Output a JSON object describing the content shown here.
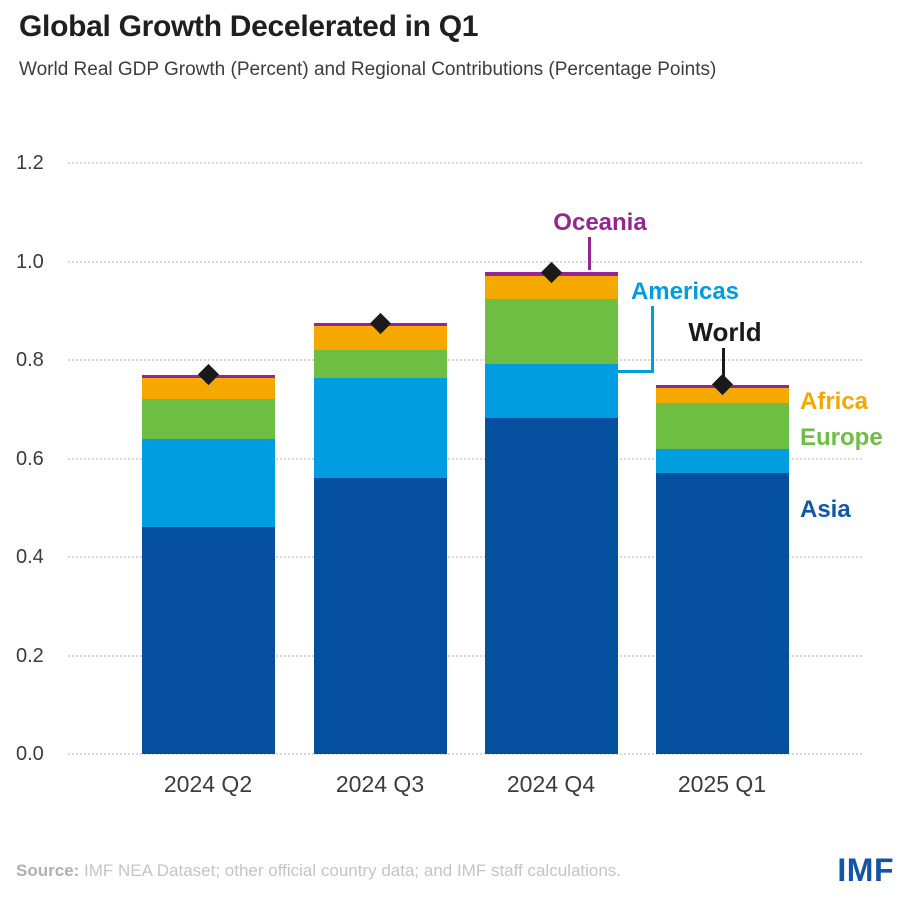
{
  "chart_data": {
    "type": "bar",
    "stacked": true,
    "title": "Global Growth Decelerated in Q1",
    "subtitle": "World Real GDP Growth (Percent) and Regional Contributions (Percentage Points)",
    "xlabel": "",
    "ylabel": "",
    "ylim": [
      0,
      1.2
    ],
    "grid": "horizontal dotted",
    "legend_position": "inline annotations on chart",
    "y_ticks": [
      "1.2",
      "1.0",
      "0.8",
      "0.6",
      "0.4",
      "0.2",
      "0.0"
    ],
    "categories": [
      "2024 Q2",
      "2024 Q3",
      "2024 Q4",
      "2025 Q1"
    ],
    "series": [
      {
        "name": "Asia",
        "color": "#05509e",
        "values": [
          0.46,
          0.56,
          0.682,
          0.57
        ]
      },
      {
        "name": "Americas",
        "color": "#009de0",
        "values": [
          0.18,
          0.203,
          0.109,
          0.049
        ]
      },
      {
        "name": "Europe",
        "color": "#6fbe44",
        "values": [
          0.08,
          0.057,
          0.133,
          0.093
        ]
      },
      {
        "name": "Africa",
        "color": "#f5a800",
        "values": [
          0.043,
          0.05,
          0.047,
          0.032
        ]
      },
      {
        "name": "Oceania",
        "color": "#93278f",
        "values": [
          0.007,
          0.005,
          0.007,
          0.006
        ]
      }
    ],
    "world": {
      "name": "World",
      "marker": "diamond",
      "color": "#1a1a1a",
      "values": [
        0.77,
        0.875,
        0.978,
        0.75
      ]
    },
    "annotations": {
      "oceania": {
        "text": "Oceania",
        "color": "#93278f"
      },
      "americas": {
        "text": "Americas",
        "color": "#009de0"
      },
      "world": {
        "text": "World",
        "color": "#1a1a1a"
      },
      "africa": {
        "text": "Africa",
        "color": "#f5a800"
      },
      "europe": {
        "text": "Europe",
        "color": "#6fbe44"
      },
      "asia": {
        "text": "Asia",
        "color": "#0f58a8"
      }
    }
  },
  "footer": {
    "source_label": "Source:",
    "source_text": " IMF NEA Dataset; other official country data; and IMF staff calculations.",
    "logo_text": "IMF",
    "logo_color": "#1355a5"
  }
}
